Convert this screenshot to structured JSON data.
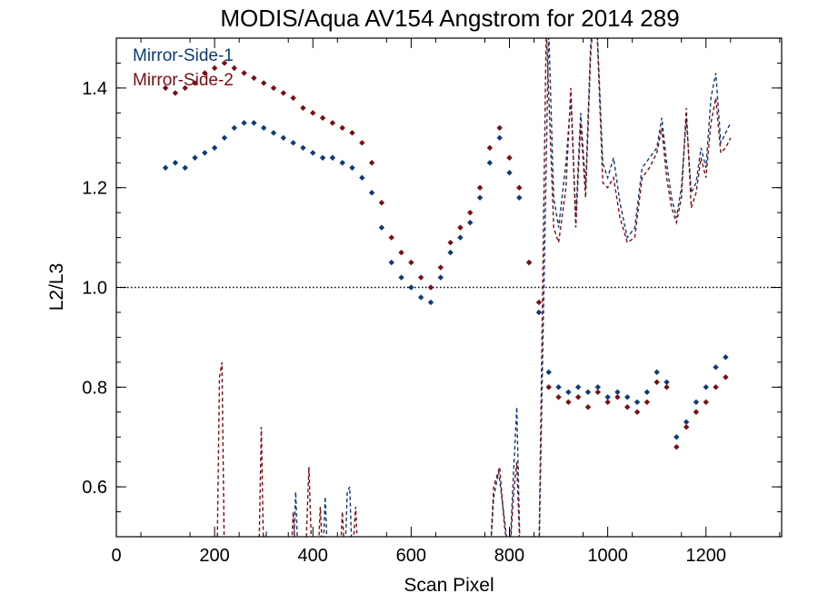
{
  "chart_data": {
    "type": "scatter",
    "title": "MODIS/Aqua AV154 Angstrom for 2014 289",
    "xlabel": "Scan Pixel",
    "ylabel": "L2/L3",
    "xlim": [
      0,
      1354
    ],
    "ylim": [
      0.5,
      1.5
    ],
    "x_ticks": [
      0,
      200,
      400,
      600,
      800,
      1000,
      1200
    ],
    "y_ticks": [
      0.6,
      0.8,
      1.0,
      1.2,
      1.4
    ],
    "x_tick_labels": [
      "0",
      "200",
      "400",
      "600",
      "800",
      "1000",
      "1200"
    ],
    "y_tick_labels": [
      "0.6",
      "0.8",
      "1.0",
      "1.2",
      "1.4"
    ],
    "reference_line": 1.0,
    "grid": false,
    "legend_position": "top-left",
    "colors": {
      "mirror_side_1": "#0e3a78",
      "mirror_side_2": "#7a0e14"
    },
    "series": [
      {
        "name": "Mirror-Side-1",
        "points_style": "diamond",
        "points": [
          [
            100,
            1.24
          ],
          [
            120,
            1.25
          ],
          [
            140,
            1.24
          ],
          [
            160,
            1.26
          ],
          [
            180,
            1.27
          ],
          [
            200,
            1.28
          ],
          [
            220,
            1.3
          ],
          [
            240,
            1.32
          ],
          [
            260,
            1.33
          ],
          [
            280,
            1.33
          ],
          [
            300,
            1.32
          ],
          [
            320,
            1.31
          ],
          [
            340,
            1.3
          ],
          [
            360,
            1.29
          ],
          [
            380,
            1.28
          ],
          [
            400,
            1.27
          ],
          [
            420,
            1.26
          ],
          [
            440,
            1.26
          ],
          [
            460,
            1.25
          ],
          [
            480,
            1.24
          ],
          [
            500,
            1.22
          ],
          [
            520,
            1.19
          ],
          [
            540,
            1.12
          ],
          [
            560,
            1.05
          ],
          [
            580,
            1.02
          ],
          [
            600,
            1.0
          ],
          [
            620,
            0.98
          ],
          [
            640,
            0.97
          ],
          [
            660,
            1.02
          ],
          [
            680,
            1.07
          ],
          [
            700,
            1.1
          ],
          [
            720,
            1.13
          ],
          [
            740,
            1.18
          ],
          [
            760,
            1.25
          ],
          [
            780,
            1.3
          ],
          [
            800,
            1.23
          ],
          [
            820,
            1.18
          ],
          [
            840,
            1.05
          ],
          [
            860,
            0.95
          ],
          [
            880,
            0.83
          ],
          [
            900,
            0.8
          ],
          [
            920,
            0.79
          ],
          [
            940,
            0.8
          ],
          [
            960,
            0.79
          ],
          [
            980,
            0.8
          ],
          [
            1000,
            0.78
          ],
          [
            1020,
            0.79
          ],
          [
            1040,
            0.78
          ],
          [
            1060,
            0.77
          ],
          [
            1080,
            0.79
          ],
          [
            1100,
            0.83
          ],
          [
            1120,
            0.81
          ],
          [
            1140,
            0.7
          ],
          [
            1160,
            0.73
          ],
          [
            1180,
            0.77
          ],
          [
            1200,
            0.8
          ],
          [
            1220,
            0.84
          ],
          [
            1240,
            0.86
          ]
        ],
        "dashed_line": [
          [
            205,
            0.45
          ],
          [
            208,
            0.45
          ],
          [
            300,
            0.45
          ],
          [
            305,
            0.51
          ],
          [
            310,
            0.45
          ],
          [
            360,
            0.45
          ],
          [
            365,
            0.59
          ],
          [
            370,
            0.45
          ],
          [
            420,
            0.45
          ],
          [
            425,
            0.58
          ],
          [
            430,
            0.45
          ],
          [
            465,
            0.45
          ],
          [
            470,
            0.59
          ],
          [
            475,
            0.6
          ],
          [
            480,
            0.45
          ],
          [
            760,
            0.45
          ],
          [
            768,
            0.58
          ],
          [
            778,
            0.63
          ],
          [
            788,
            0.55
          ],
          [
            800,
            0.45
          ],
          [
            808,
            0.62
          ],
          [
            815,
            0.76
          ],
          [
            822,
            0.45
          ],
          [
            860,
            0.45
          ],
          [
            880,
            1.52
          ],
          [
            890,
            1.18
          ],
          [
            900,
            1.12
          ],
          [
            915,
            1.25
          ],
          [
            925,
            1.38
          ],
          [
            935,
            1.14
          ],
          [
            945,
            1.35
          ],
          [
            955,
            1.2
          ],
          [
            965,
            1.48
          ],
          [
            975,
            1.6
          ],
          [
            990,
            1.25
          ],
          [
            1000,
            1.22
          ],
          [
            1012,
            1.26
          ],
          [
            1025,
            1.17
          ],
          [
            1040,
            1.1
          ],
          [
            1055,
            1.12
          ],
          [
            1070,
            1.24
          ],
          [
            1085,
            1.26
          ],
          [
            1100,
            1.28
          ],
          [
            1110,
            1.34
          ],
          [
            1120,
            1.25
          ],
          [
            1130,
            1.18
          ],
          [
            1140,
            1.14
          ],
          [
            1150,
            1.2
          ],
          [
            1160,
            1.34
          ],
          [
            1170,
            1.19
          ],
          [
            1180,
            1.21
          ],
          [
            1190,
            1.28
          ],
          [
            1200,
            1.24
          ],
          [
            1210,
            1.38
          ],
          [
            1220,
            1.43
          ],
          [
            1230,
            1.29
          ],
          [
            1240,
            1.31
          ],
          [
            1250,
            1.33
          ]
        ]
      },
      {
        "name": "Mirror-Side-2",
        "points_style": "diamond",
        "points": [
          [
            100,
            1.4
          ],
          [
            120,
            1.39
          ],
          [
            140,
            1.4
          ],
          [
            160,
            1.41
          ],
          [
            180,
            1.43
          ],
          [
            200,
            1.44
          ],
          [
            220,
            1.45
          ],
          [
            240,
            1.44
          ],
          [
            260,
            1.43
          ],
          [
            280,
            1.42
          ],
          [
            300,
            1.41
          ],
          [
            320,
            1.4
          ],
          [
            340,
            1.39
          ],
          [
            360,
            1.38
          ],
          [
            380,
            1.36
          ],
          [
            400,
            1.35
          ],
          [
            420,
            1.34
          ],
          [
            440,
            1.33
          ],
          [
            460,
            1.32
          ],
          [
            480,
            1.31
          ],
          [
            500,
            1.29
          ],
          [
            520,
            1.25
          ],
          [
            540,
            1.17
          ],
          [
            560,
            1.1
          ],
          [
            580,
            1.07
          ],
          [
            600,
            1.05
          ],
          [
            620,
            1.02
          ],
          [
            640,
            1.0
          ],
          [
            660,
            1.04
          ],
          [
            680,
            1.09
          ],
          [
            700,
            1.12
          ],
          [
            720,
            1.15
          ],
          [
            740,
            1.2
          ],
          [
            760,
            1.28
          ],
          [
            780,
            1.32
          ],
          [
            800,
            1.26
          ],
          [
            820,
            1.2
          ],
          [
            840,
            1.05
          ],
          [
            860,
            0.97
          ],
          [
            880,
            0.8
          ],
          [
            900,
            0.78
          ],
          [
            920,
            0.77
          ],
          [
            940,
            0.78
          ],
          [
            960,
            0.76
          ],
          [
            980,
            0.79
          ],
          [
            1000,
            0.77
          ],
          [
            1020,
            0.78
          ],
          [
            1040,
            0.76
          ],
          [
            1060,
            0.75
          ],
          [
            1080,
            0.77
          ],
          [
            1100,
            0.81
          ],
          [
            1120,
            0.8
          ],
          [
            1140,
            0.68
          ],
          [
            1160,
            0.72
          ],
          [
            1180,
            0.75
          ],
          [
            1200,
            0.77
          ],
          [
            1220,
            0.8
          ],
          [
            1240,
            0.82
          ]
        ],
        "dashed_line": [
          [
            205,
            0.45
          ],
          [
            210,
            0.82
          ],
          [
            215,
            0.85
          ],
          [
            220,
            0.45
          ],
          [
            290,
            0.45
          ],
          [
            295,
            0.72
          ],
          [
            300,
            0.45
          ],
          [
            355,
            0.45
          ],
          [
            360,
            0.55
          ],
          [
            365,
            0.45
          ],
          [
            385,
            0.45
          ],
          [
            392,
            0.64
          ],
          [
            398,
            0.45
          ],
          [
            410,
            0.45
          ],
          [
            415,
            0.56
          ],
          [
            420,
            0.45
          ],
          [
            455,
            0.45
          ],
          [
            460,
            0.55
          ],
          [
            465,
            0.45
          ],
          [
            480,
            0.45
          ],
          [
            487,
            0.56
          ],
          [
            492,
            0.45
          ],
          [
            760,
            0.45
          ],
          [
            768,
            0.6
          ],
          [
            780,
            0.64
          ],
          [
            790,
            0.52
          ],
          [
            800,
            0.45
          ],
          [
            808,
            0.58
          ],
          [
            815,
            0.65
          ],
          [
            822,
            0.45
          ],
          [
            860,
            0.45
          ],
          [
            875,
            1.52
          ],
          [
            890,
            1.12
          ],
          [
            900,
            1.09
          ],
          [
            915,
            1.2
          ],
          [
            925,
            1.4
          ],
          [
            935,
            1.12
          ],
          [
            945,
            1.33
          ],
          [
            955,
            1.18
          ],
          [
            965,
            1.46
          ],
          [
            975,
            1.6
          ],
          [
            990,
            1.21
          ],
          [
            1000,
            1.2
          ],
          [
            1012,
            1.22
          ],
          [
            1025,
            1.14
          ],
          [
            1040,
            1.09
          ],
          [
            1055,
            1.1
          ],
          [
            1070,
            1.22
          ],
          [
            1085,
            1.24
          ],
          [
            1100,
            1.27
          ],
          [
            1110,
            1.32
          ],
          [
            1120,
            1.22
          ],
          [
            1130,
            1.16
          ],
          [
            1140,
            1.13
          ],
          [
            1150,
            1.18
          ],
          [
            1160,
            1.36
          ],
          [
            1170,
            1.16
          ],
          [
            1180,
            1.19
          ],
          [
            1190,
            1.26
          ],
          [
            1200,
            1.22
          ],
          [
            1210,
            1.33
          ],
          [
            1220,
            1.38
          ],
          [
            1230,
            1.27
          ],
          [
            1240,
            1.28
          ],
          [
            1250,
            1.3
          ]
        ]
      }
    ]
  }
}
